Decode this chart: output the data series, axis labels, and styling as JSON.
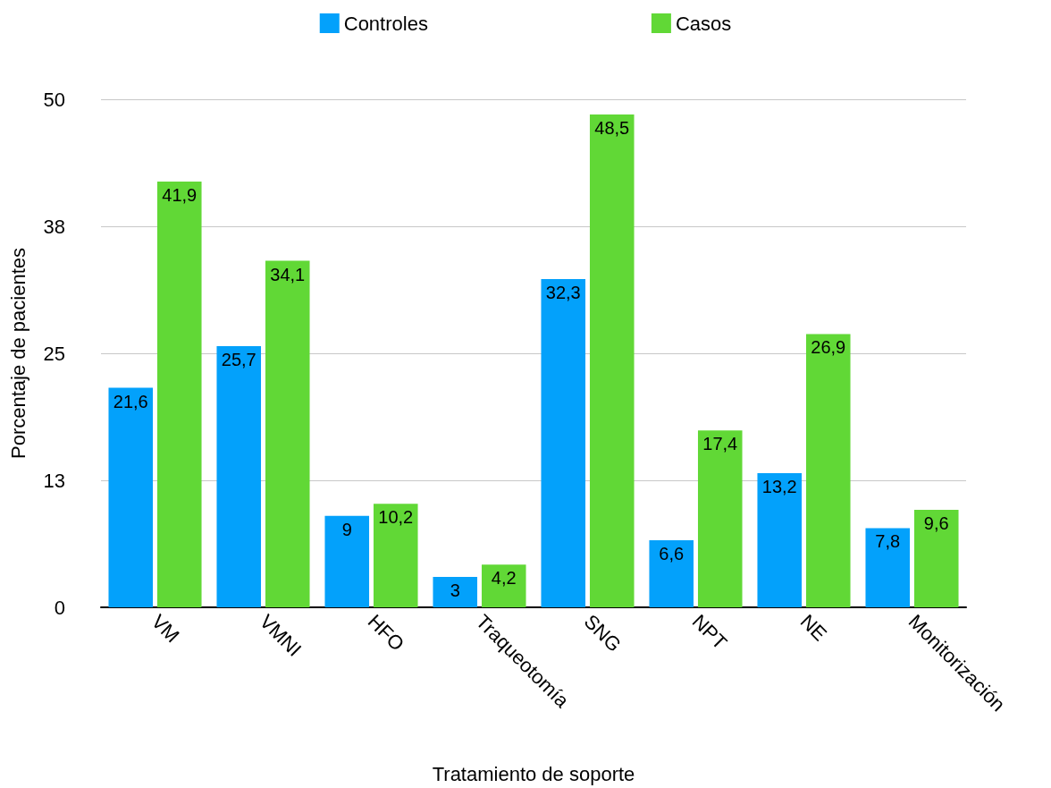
{
  "chart_data": {
    "type": "bar",
    "xlabel": "Tratamiento de soporte",
    "ylabel": "Porcentaje de pacientes",
    "categories": [
      "VM",
      "VMNI",
      "HFO",
      "Traqueotomía",
      "SNG",
      "NPT",
      "NE",
      "Monitorización"
    ],
    "series": [
      {
        "name": "Controles",
        "color": "#03a1fb",
        "values": [
          21.6,
          25.7,
          9,
          3,
          32.3,
          6.6,
          13.2,
          7.8
        ],
        "value_labels": [
          "21,6",
          "25,7",
          "9",
          "3",
          "32,3",
          "6,6",
          "13,2",
          "7,8"
        ]
      },
      {
        "name": "Casos",
        "color": "#61d836",
        "values": [
          41.9,
          34.1,
          10.2,
          4.2,
          48.5,
          17.4,
          26.9,
          9.6
        ],
        "value_labels": [
          "41,9",
          "34,1",
          "10,2",
          "4,2",
          "48,5",
          "17,4",
          "26,9",
          "9,6"
        ]
      }
    ],
    "ylim": [
      0,
      50
    ],
    "yticks": [
      0,
      {
        "value": 12.5,
        "label": "13"
      },
      25,
      {
        "value": 37.5,
        "label": "38"
      },
      50
    ],
    "grid": "y",
    "legend": "top"
  }
}
